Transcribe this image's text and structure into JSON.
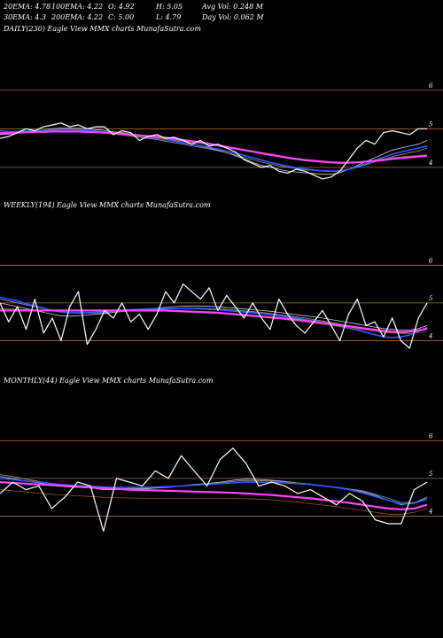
{
  "header": {
    "row1": [
      "20EMA: 4.78",
      "100EMA: 4.22",
      "O: 4.92",
      "H: 5.05",
      "Avg Vol: 0.248  M"
    ],
    "row2": [
      "30EMA: 4.3",
      "200EMA: 4.22",
      "C: 5.00",
      "L: 4.79",
      "Day Vol: 0.062  M"
    ]
  },
  "colors": {
    "background": "#000000",
    "price": "#ffffff",
    "ema_fast": "#2b5bff",
    "ema_slow": "#ff44ff",
    "ema_mid": "#ff66cc",
    "ema_grey": "#9a9a9a",
    "ema_brown": "#8b5a2b",
    "ema_light": "#cccccc",
    "level_line": "#b06a2a"
  },
  "chart_data": [
    {
      "type": "line",
      "title": "DAILY(230) Eagle  View  MMX  charts MunafaSutra.com",
      "ylim": [
        3.4,
        6.5
      ],
      "levels": [
        6,
        5,
        4
      ],
      "level_labels": [
        "6",
        "5",
        "4"
      ],
      "series": [
        {
          "key": "price",
          "color": "#ffffff",
          "width": 1.2,
          "values": [
            4.75,
            4.8,
            4.9,
            5.0,
            4.95,
            5.05,
            5.1,
            5.15,
            5.05,
            5.1,
            5.0,
            5.05,
            5.05,
            4.85,
            4.95,
            4.9,
            4.7,
            4.8,
            4.85,
            4.75,
            4.78,
            4.7,
            4.6,
            4.7,
            4.55,
            4.6,
            4.5,
            4.4,
            4.2,
            4.1,
            4.0,
            4.05,
            3.9,
            3.85,
            3.95,
            3.9,
            3.8,
            3.7,
            3.75,
            3.9,
            4.2,
            4.5,
            4.7,
            4.6,
            4.9,
            4.95,
            4.9,
            4.85,
            5.0,
            5.0
          ]
        },
        {
          "key": "ema_light",
          "color": "#cccccc",
          "width": 0.8,
          "values": [
            4.85,
            4.86,
            4.88,
            4.92,
            4.95,
            4.97,
            5.0,
            5.02,
            5.02,
            5.02,
            5.0,
            4.98,
            4.96,
            4.92,
            4.9,
            4.87,
            4.83,
            4.8,
            4.78,
            4.74,
            4.7,
            4.65,
            4.6,
            4.55,
            4.5,
            4.45,
            4.38,
            4.3,
            4.22,
            4.13,
            4.05,
            4.0,
            3.95,
            3.9,
            3.88,
            3.86,
            3.84,
            3.82,
            3.82,
            3.86,
            3.95,
            4.05,
            4.15,
            4.25,
            4.35,
            4.45,
            4.5,
            4.55,
            4.6,
            4.7
          ]
        },
        {
          "key": "ema_grey",
          "color": "#9a9a9a",
          "width": 0.8,
          "values": [
            4.9,
            4.9,
            4.91,
            4.93,
            4.95,
            4.96,
            4.97,
            4.98,
            4.98,
            4.97,
            4.95,
            4.93,
            4.9,
            4.87,
            4.84,
            4.81,
            4.78,
            4.75,
            4.72,
            4.68,
            4.64,
            4.6,
            4.56,
            4.52,
            4.48,
            4.43,
            4.38,
            4.32,
            4.26,
            4.2,
            4.14,
            4.09,
            4.04,
            4.0,
            3.97,
            3.94,
            3.92,
            3.9,
            3.89,
            3.9,
            3.94,
            4.0,
            4.07,
            4.14,
            4.21,
            4.28,
            4.33,
            4.38,
            4.42,
            4.5
          ]
        },
        {
          "key": "ema_fast",
          "color": "#2b5bff",
          "width": 1.6,
          "values": [
            4.95,
            4.93,
            4.93,
            4.94,
            4.95,
            4.96,
            4.97,
            4.98,
            4.98,
            4.97,
            4.96,
            4.94,
            4.92,
            4.9,
            4.87,
            4.84,
            4.81,
            4.78,
            4.75,
            4.72,
            4.68,
            4.64,
            4.6,
            4.56,
            4.52,
            4.47,
            4.42,
            4.37,
            4.31,
            4.25,
            4.19,
            4.13,
            4.08,
            4.03,
            3.99,
            3.96,
            3.93,
            3.91,
            3.9,
            3.91,
            3.95,
            4.02,
            4.1,
            4.18,
            4.26,
            4.34,
            4.4,
            4.45,
            4.5,
            4.55
          ]
        },
        {
          "key": "ema_brown",
          "color": "#8b5a2b",
          "width": 0.8,
          "values": [
            4.88,
            4.88,
            4.89,
            4.9,
            4.91,
            4.92,
            4.93,
            4.93,
            4.93,
            4.92,
            4.91,
            4.9,
            4.88,
            4.86,
            4.84,
            4.82,
            4.8,
            4.78,
            4.76,
            4.74,
            4.71,
            4.68,
            4.65,
            4.62,
            4.59,
            4.55,
            4.51,
            4.47,
            4.43,
            4.39,
            4.35,
            4.31,
            4.27,
            4.23,
            4.2,
            4.17,
            4.15,
            4.13,
            4.11,
            4.1,
            4.11,
            4.13,
            4.16,
            4.19,
            4.22,
            4.25,
            4.27,
            4.29,
            4.31,
            4.33
          ]
        },
        {
          "key": "ema_slow",
          "color": "#ff44ff",
          "width": 2.2,
          "values": [
            4.88,
            4.89,
            4.9,
            4.91,
            4.92,
            4.92,
            4.93,
            4.93,
            4.93,
            4.93,
            4.92,
            4.91,
            4.9,
            4.89,
            4.87,
            4.85,
            4.83,
            4.81,
            4.79,
            4.77,
            4.74,
            4.71,
            4.68,
            4.65,
            4.61,
            4.57,
            4.53,
            4.49,
            4.45,
            4.41,
            4.37,
            4.33,
            4.29,
            4.25,
            4.22,
            4.19,
            4.17,
            4.15,
            4.13,
            4.12,
            4.12,
            4.13,
            4.15,
            4.17,
            4.19,
            4.22,
            4.24,
            4.26,
            4.28,
            4.3
          ]
        }
      ]
    },
    {
      "type": "line",
      "title": "WEEKLY(194) Eagle  View  MMX  charts MunafaSutra.com",
      "ylim": [
        3.4,
        6.5
      ],
      "levels": [
        6,
        5,
        4
      ],
      "level_labels": [
        "6",
        "5",
        "4"
      ],
      "series": [
        {
          "key": "price",
          "color": "#ffffff",
          "width": 1.2,
          "values": [
            5.0,
            4.5,
            4.9,
            4.3,
            5.1,
            4.2,
            4.6,
            4.0,
            4.9,
            5.3,
            3.9,
            4.3,
            4.8,
            4.6,
            5.0,
            4.5,
            4.7,
            4.3,
            4.7,
            5.3,
            5.0,
            5.5,
            5.3,
            5.1,
            5.4,
            4.8,
            5.2,
            4.9,
            4.6,
            5.0,
            4.6,
            4.3,
            5.1,
            4.7,
            4.4,
            4.2,
            4.5,
            4.8,
            4.4,
            4.0,
            4.7,
            5.1,
            4.4,
            4.5,
            4.1,
            4.6,
            4.0,
            3.8,
            4.6,
            5.0
          ]
        },
        {
          "key": "ema_light",
          "color": "#cccccc",
          "width": 0.8,
          "values": [
            5.0,
            4.95,
            4.9,
            4.85,
            4.8,
            4.75,
            4.7,
            4.66,
            4.65,
            4.66,
            4.68,
            4.7,
            4.72,
            4.75,
            4.78,
            4.8,
            4.82,
            4.84,
            4.86,
            4.88,
            4.9,
            4.91,
            4.92,
            4.92,
            4.91,
            4.9,
            4.88,
            4.86,
            4.84,
            4.82,
            4.8,
            4.78,
            4.75,
            4.72,
            4.69,
            4.66,
            4.63,
            4.6,
            4.56,
            4.52,
            4.48,
            4.44,
            4.4,
            4.36,
            4.32,
            4.3,
            4.28,
            4.28,
            4.32,
            4.4
          ]
        },
        {
          "key": "ema_grey",
          "color": "#9a9a9a",
          "width": 0.8,
          "values": [
            5.1,
            5.05,
            5.0,
            4.95,
            4.9,
            4.85,
            4.8,
            4.76,
            4.74,
            4.73,
            4.73,
            4.73,
            4.74,
            4.75,
            4.77,
            4.79,
            4.81,
            4.82,
            4.83,
            4.84,
            4.85,
            4.86,
            4.86,
            4.86,
            4.85,
            4.84,
            4.83,
            4.81,
            4.79,
            4.77,
            4.75,
            4.72,
            4.69,
            4.66,
            4.63,
            4.6,
            4.56,
            4.52,
            4.48,
            4.44,
            4.4,
            4.36,
            4.32,
            4.28,
            4.24,
            4.21,
            4.2,
            4.22,
            4.27,
            4.35
          ]
        },
        {
          "key": "ema_fast",
          "color": "#2b5bff",
          "width": 1.6,
          "values": [
            5.15,
            5.1,
            5.05,
            4.98,
            4.92,
            4.86,
            4.8,
            4.76,
            4.74,
            4.74,
            4.74,
            4.75,
            4.76,
            4.78,
            4.8,
            4.82,
            4.83,
            4.84,
            4.85,
            4.85,
            4.85,
            4.85,
            4.85,
            4.84,
            4.83,
            4.82,
            4.8,
            4.78,
            4.76,
            4.74,
            4.72,
            4.69,
            4.66,
            4.63,
            4.6,
            4.56,
            4.52,
            4.48,
            4.43,
            4.38,
            4.33,
            4.28,
            4.22,
            4.16,
            4.1,
            4.08,
            4.1,
            4.15,
            4.25,
            4.35
          ]
        },
        {
          "key": "ema_brown",
          "color": "#8b5a2b",
          "width": 0.8,
          "values": [
            4.85,
            4.84,
            4.83,
            4.82,
            4.81,
            4.8,
            4.79,
            4.78,
            4.78,
            4.78,
            4.78,
            4.78,
            4.78,
            4.78,
            4.78,
            4.78,
            4.78,
            4.78,
            4.78,
            4.78,
            4.77,
            4.76,
            4.75,
            4.74,
            4.73,
            4.72,
            4.7,
            4.68,
            4.66,
            4.64,
            4.62,
            4.6,
            4.58,
            4.55,
            4.52,
            4.49,
            4.46,
            4.43,
            4.4,
            4.37,
            4.34,
            4.31,
            4.28,
            4.25,
            4.22,
            4.2,
            4.19,
            4.19,
            4.21,
            4.25
          ]
        },
        {
          "key": "ema_slow",
          "color": "#ff44ff",
          "width": 2.2,
          "values": [
            4.8,
            4.8,
            4.8,
            4.8,
            4.8,
            4.8,
            4.8,
            4.8,
            4.8,
            4.8,
            4.8,
            4.8,
            4.8,
            4.8,
            4.8,
            4.8,
            4.8,
            4.8,
            4.8,
            4.8,
            4.79,
            4.78,
            4.77,
            4.76,
            4.75,
            4.74,
            4.72,
            4.7,
            4.68,
            4.66,
            4.64,
            4.62,
            4.6,
            4.58,
            4.56,
            4.53,
            4.5,
            4.47,
            4.44,
            4.41,
            4.38,
            4.35,
            4.32,
            4.29,
            4.26,
            4.24,
            4.23,
            4.24,
            4.27,
            4.32
          ]
        }
      ]
    },
    {
      "type": "line",
      "title": "MONTHLY(44) Eagle  View  MMX  charts MunafaSutra.com",
      "ylim": [
        3.4,
        6.5
      ],
      "levels": [
        6,
        5,
        4
      ],
      "level_labels": [
        "6",
        "5",
        "4"
      ],
      "series": [
        {
          "key": "price",
          "color": "#ffffff",
          "width": 1.2,
          "values": [
            4.6,
            4.9,
            4.7,
            4.8,
            4.2,
            4.5,
            4.9,
            4.8,
            3.6,
            5.0,
            4.9,
            4.8,
            5.2,
            5.0,
            5.6,
            5.2,
            4.8,
            5.5,
            5.8,
            5.4,
            4.8,
            4.9,
            4.8,
            4.6,
            4.7,
            4.5,
            4.3,
            4.6,
            4.4,
            3.9,
            3.8,
            3.8,
            4.7,
            4.9
          ]
        },
        {
          "key": "ema_light",
          "color": "#cccccc",
          "width": 0.8,
          "values": [
            5.05,
            5.0,
            4.93,
            4.88,
            4.82,
            4.78,
            4.76,
            4.75,
            4.7,
            4.7,
            4.71,
            4.72,
            4.74,
            4.76,
            4.8,
            4.84,
            4.86,
            4.9,
            4.95,
            4.98,
            4.97,
            4.95,
            4.92,
            4.88,
            4.85,
            4.8,
            4.75,
            4.7,
            4.65,
            4.55,
            4.42,
            4.3,
            4.35,
            4.5
          ]
        },
        {
          "key": "ema_grey",
          "color": "#9a9a9a",
          "width": 0.8,
          "values": [
            5.1,
            5.05,
            4.98,
            4.92,
            4.86,
            4.82,
            4.8,
            4.78,
            4.74,
            4.73,
            4.73,
            4.74,
            4.75,
            4.77,
            4.8,
            4.83,
            4.85,
            4.88,
            4.92,
            4.94,
            4.94,
            4.93,
            4.91,
            4.88,
            4.85,
            4.81,
            4.77,
            4.72,
            4.67,
            4.58,
            4.47,
            4.36,
            4.36,
            4.45
          ]
        },
        {
          "key": "ema_fast",
          "color": "#2b5bff",
          "width": 1.6,
          "values": [
            5.0,
            4.97,
            4.93,
            4.9,
            4.86,
            4.83,
            4.81,
            4.79,
            4.77,
            4.76,
            4.76,
            4.76,
            4.77,
            4.78,
            4.8,
            4.82,
            4.84,
            4.86,
            4.88,
            4.9,
            4.9,
            4.89,
            4.88,
            4.86,
            4.84,
            4.8,
            4.76,
            4.7,
            4.62,
            4.52,
            4.42,
            4.32,
            4.34,
            4.45
          ]
        },
        {
          "key": "ema_brown",
          "color": "#8b5a2b",
          "width": 0.8,
          "values": [
            4.7,
            4.67,
            4.64,
            4.61,
            4.58,
            4.56,
            4.54,
            4.52,
            4.5,
            4.49,
            4.48,
            4.47,
            4.47,
            4.47,
            4.47,
            4.47,
            4.47,
            4.47,
            4.47,
            4.46,
            4.45,
            4.43,
            4.4,
            4.37,
            4.33,
            4.29,
            4.25,
            4.2,
            4.15,
            4.1,
            4.05,
            4.05,
            4.1,
            4.2
          ]
        },
        {
          "key": "ema_slow",
          "color": "#ff44ff",
          "width": 2.2,
          "values": [
            4.9,
            4.88,
            4.86,
            4.84,
            4.82,
            4.8,
            4.78,
            4.76,
            4.74,
            4.72,
            4.7,
            4.69,
            4.68,
            4.67,
            4.66,
            4.65,
            4.64,
            4.63,
            4.62,
            4.6,
            4.58,
            4.56,
            4.53,
            4.5,
            4.47,
            4.43,
            4.39,
            4.35,
            4.3,
            4.25,
            4.2,
            4.18,
            4.2,
            4.3
          ]
        }
      ]
    }
  ]
}
